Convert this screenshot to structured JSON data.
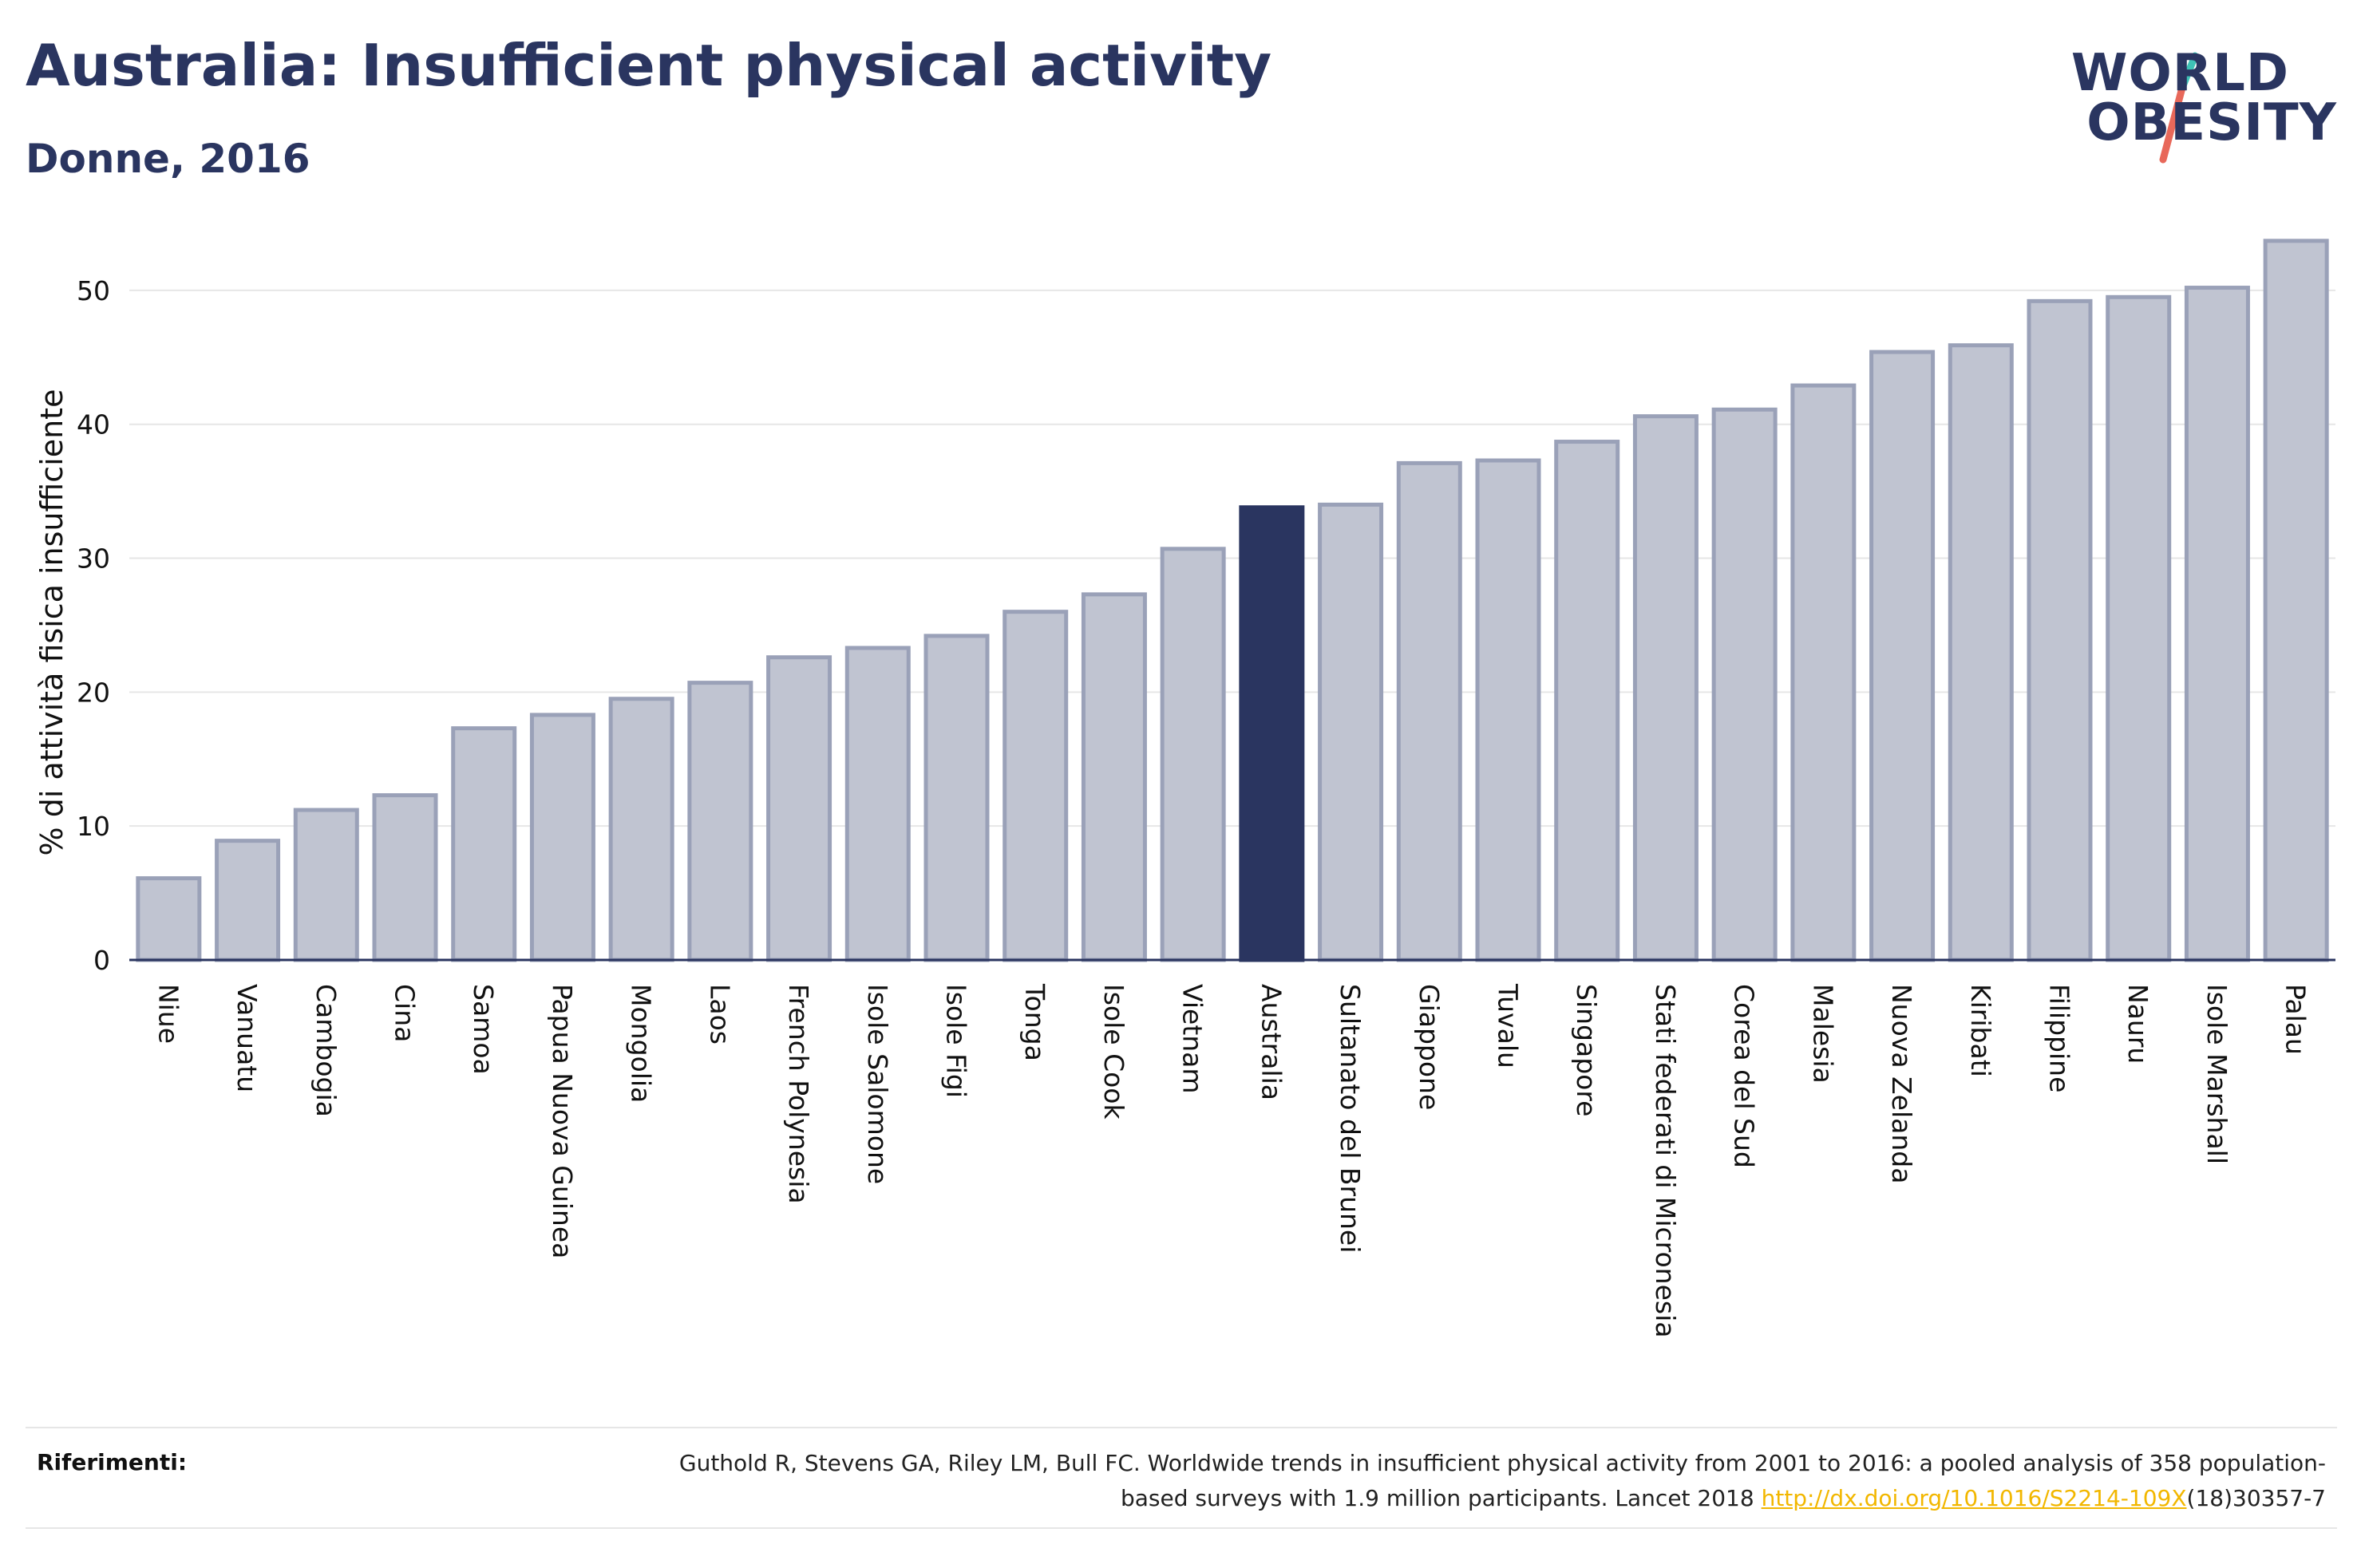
{
  "header": {
    "title": "Australia: Insufficient physical activity",
    "subtitle": "Donne, 2016"
  },
  "logo": {
    "line1": "WORLD",
    "line2": "OBESITY",
    "colors": {
      "text": "#2a3560",
      "slash_top": "#3fc1b6",
      "slash_bottom": "#e8685a"
    }
  },
  "chart_data": {
    "type": "bar",
    "ylabel": "% di attività fisica insufficiente",
    "xlabel": "",
    "ylim": [
      0,
      55
    ],
    "yticks": [
      0,
      10,
      20,
      30,
      40,
      50
    ],
    "grid": true,
    "highlight": "Australia",
    "colors": {
      "bar": "#c0c4d1",
      "bar_border": "#9aa1b8",
      "highlight": "#2a3560",
      "grid": "#e6e6e6"
    },
    "categories": [
      "Niue",
      "Vanuatu",
      "Cambogia",
      "Cina",
      "Samoa",
      "Papua Nuova Guinea",
      "Mongolia",
      "Laos",
      "French Polynesia",
      "Isole Salomone",
      "Isole Figi",
      "Tonga",
      "Isole Cook",
      "Vietnam",
      "Australia",
      "Sultanato del Brunei",
      "Giappone",
      "Tuvalu",
      "Singapore",
      "Stati federati di Micronesia",
      "Corea del Sud",
      "Malesia",
      "Nuova Zelanda",
      "Kiribati",
      "Filippine",
      "Nauru",
      "Isole Marshall",
      "Palau"
    ],
    "values": [
      6.1,
      8.9,
      11.2,
      12.3,
      17.3,
      18.3,
      19.5,
      20.7,
      22.6,
      23.3,
      24.2,
      26.0,
      27.3,
      30.7,
      33.8,
      34.0,
      37.1,
      37.3,
      38.7,
      40.6,
      41.1,
      42.9,
      45.4,
      45.9,
      49.2,
      49.5,
      50.2,
      53.7
    ]
  },
  "references": {
    "label": "Riferimenti:",
    "text_before": "Guthold R, Stevens GA, Riley LM, Bull FC. Worldwide trends in insufficient physical activity from 2001 to 2016: a pooled analysis of 358 population-based surveys with 1.9 million participants. Lancet 2018 ",
    "link": "http://dx.doi.org/10.1016/S2214-109X",
    "text_after": "(18)30357-7"
  }
}
